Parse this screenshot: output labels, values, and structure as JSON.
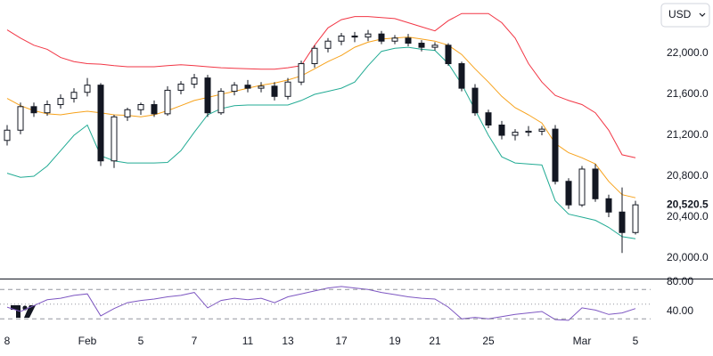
{
  "chart_data": {
    "type": "candlestick",
    "currency": "USD",
    "categories": [
      "8",
      null,
      null,
      null,
      null,
      null,
      "Feb",
      null,
      null,
      null,
      "5",
      null,
      null,
      null,
      "7",
      null,
      null,
      null,
      "11",
      null,
      null,
      "13",
      null,
      null,
      null,
      "17",
      null,
      null,
      null,
      "19",
      null,
      null,
      "21",
      null,
      null,
      null,
      "25",
      null,
      null,
      null,
      null,
      null,
      null,
      "Mar",
      null,
      null,
      null,
      "5"
    ],
    "open": [
      21150,
      21250,
      21480,
      21420,
      21500,
      21560,
      21620,
      21690,
      20950,
      21380,
      21450,
      21500,
      21410,
      21640,
      21700,
      21760,
      21420,
      21630,
      21690,
      21660,
      21680,
      21580,
      21720,
      21900,
      22050,
      22120,
      22170,
      22160,
      22190,
      22120,
      22150,
      22100,
      22060,
      22080,
      21900,
      21660,
      21420,
      21300,
      21200,
      21230,
      21240,
      21260,
      20750,
      20520,
      20870,
      20580,
      20450,
      20250
    ],
    "high": [
      21300,
      21520,
      21520,
      21540,
      21600,
      21660,
      21760,
      21710,
      21400,
      21470,
      21520,
      21540,
      21680,
      21730,
      21800,
      21790,
      21660,
      21720,
      21740,
      21720,
      21720,
      21760,
      21930,
      22080,
      22150,
      22200,
      22210,
      22230,
      22220,
      22180,
      22190,
      22130,
      22110,
      22100,
      21920,
      21700,
      21450,
      21340,
      21260,
      21290,
      21290,
      21300,
      20780,
      20900,
      20920,
      20620,
      20690,
      20560
    ],
    "low": [
      21100,
      21210,
      21380,
      21390,
      21460,
      21520,
      21580,
      20900,
      20880,
      21340,
      21400,
      21380,
      21390,
      21600,
      21660,
      21380,
      21400,
      21590,
      21620,
      21620,
      21540,
      21550,
      21690,
      21860,
      22010,
      22080,
      22110,
      22120,
      22090,
      22090,
      22070,
      22020,
      22030,
      21880,
      21630,
      21390,
      21270,
      21160,
      21150,
      21190,
      21200,
      20720,
      20480,
      20500,
      20550,
      20400,
      20050,
      20230
    ],
    "close": [
      21250,
      21480,
      21420,
      21500,
      21560,
      21620,
      21690,
      20950,
      21380,
      21450,
      21500,
      21410,
      21640,
      21700,
      21760,
      21420,
      21630,
      21690,
      21660,
      21680,
      21580,
      21720,
      21900,
      22050,
      22120,
      22170,
      22160,
      22190,
      22120,
      22150,
      22100,
      22060,
      22080,
      21900,
      21660,
      21420,
      21300,
      21200,
      21230,
      21240,
      21260,
      20750,
      20520,
      20870,
      20580,
      20450,
      20250,
      20520.5
    ],
    "up_color": "#ffffff",
    "down_color": "#131722",
    "bands": [
      {
        "color": "#f23645",
        "values": [
          22230,
          22150,
          22080,
          22040,
          21960,
          21920,
          21900,
          21895,
          21880,
          21870,
          21870,
          21870,
          21880,
          21890,
          21880,
          21870,
          21860,
          21855,
          21850,
          21845,
          21845,
          21860,
          21880,
          22080,
          22250,
          22330,
          22360,
          22360,
          22350,
          22340,
          22300,
          22260,
          22220,
          22320,
          22390,
          22390,
          22390,
          22300,
          22150,
          21900,
          21720,
          21590,
          21540,
          21500,
          21420,
          21250,
          21010,
          20980
        ]
      },
      {
        "color": "#f7a21b",
        "values": [
          21560,
          21490,
          21440,
          21410,
          21400,
          21420,
          21435,
          21420,
          21400,
          21395,
          21380,
          21400,
          21440,
          21490,
          21540,
          21570,
          21600,
          21630,
          21660,
          21690,
          21710,
          21740,
          21780,
          21850,
          21920,
          21980,
          22060,
          22110,
          22140,
          22150,
          22160,
          22140,
          22120,
          22080,
          21990,
          21850,
          21720,
          21580,
          21470,
          21400,
          21320,
          21120,
          21030,
          20980,
          20920,
          20750,
          20620,
          20590
        ]
      },
      {
        "color": "#22ab94",
        "values": [
          20830,
          20790,
          20800,
          20900,
          21050,
          21200,
          21300,
          21000,
          20950,
          20930,
          20930,
          20930,
          20935,
          21050,
          21230,
          21400,
          21460,
          21490,
          21496,
          21496,
          21496,
          21496,
          21540,
          21600,
          21630,
          21660,
          21720,
          21880,
          22020,
          22050,
          22060,
          22040,
          22030,
          21900,
          21700,
          21450,
          21200,
          20990,
          20930,
          20920,
          20910,
          20560,
          20430,
          20400,
          20370,
          20300,
          20210,
          20190
        ]
      }
    ],
    "ylim": [
      19800,
      22522
    ],
    "yticks": [
      {
        "value": 20000,
        "label": "20,000.0"
      },
      {
        "value": 20400,
        "label": "20,400.0"
      },
      {
        "value": 20800,
        "label": "20,800.0"
      },
      {
        "value": 21200,
        "label": "21,200.0"
      },
      {
        "value": 21600,
        "label": "21,600.0"
      },
      {
        "value": 22000,
        "label": "22,000.0"
      }
    ],
    "last_price": {
      "value": 20520.5,
      "label": "20,520.5"
    },
    "rsi": {
      "color": "#7e57c2",
      "values": [
        46,
        40,
        48,
        56,
        58,
        62,
        64,
        34,
        44,
        52,
        55,
        57,
        60,
        62,
        66,
        45,
        55,
        58,
        56,
        58,
        52,
        60,
        64,
        68,
        72,
        74,
        72,
        70,
        66,
        63,
        60,
        58,
        57,
        46,
        30,
        32,
        30,
        33,
        36,
        38,
        40,
        29,
        28,
        45,
        42,
        36,
        38,
        44
      ],
      "ylim": [
        20,
        80
      ],
      "yticks": [
        {
          "value": 80,
          "label": "80.00"
        },
        {
          "value": 40,
          "label": "40.00"
        }
      ],
      "levels": [
        70,
        50,
        30
      ]
    }
  }
}
